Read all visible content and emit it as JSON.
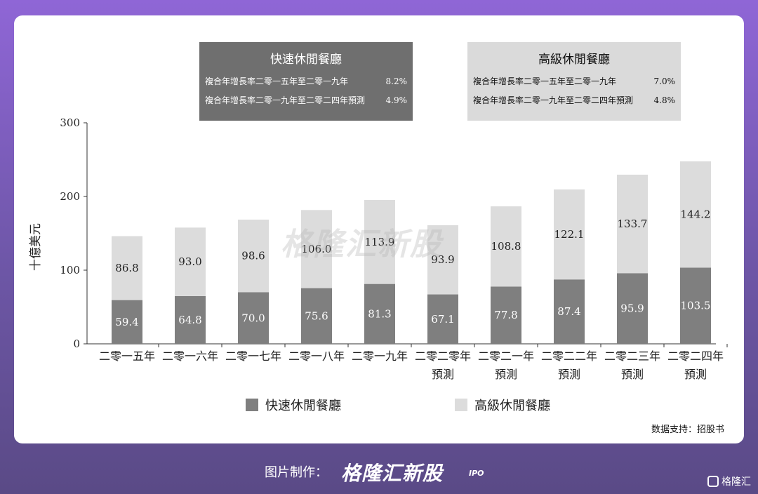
{
  "chart_data": {
    "type": "bar",
    "stacked": true,
    "ylabel": "十億美元",
    "ylim": [
      0,
      300
    ],
    "yticks": [
      0,
      100,
      200,
      300
    ],
    "categories": [
      [
        "二零一五年"
      ],
      [
        "二零一六年"
      ],
      [
        "二零一七年"
      ],
      [
        "二零一八年"
      ],
      [
        "二零一九年"
      ],
      [
        "二零二零年",
        "預測"
      ],
      [
        "二零二一年",
        "預測"
      ],
      [
        "二零二二年",
        "預測"
      ],
      [
        "二零二三年",
        "預測"
      ],
      [
        "二零二四年",
        "預測"
      ]
    ],
    "series": [
      {
        "name": "快速休閒餐廳",
        "color": "#7f7f7f",
        "values": [
          59.4,
          64.8,
          70.0,
          75.6,
          81.3,
          67.1,
          77.8,
          87.4,
          95.9,
          103.5
        ]
      },
      {
        "name": "高級休閒餐廳",
        "color": "#dcdcdc",
        "values": [
          86.8,
          93.0,
          98.6,
          106.0,
          113.9,
          93.9,
          108.8,
          122.1,
          133.7,
          144.2
        ]
      }
    ],
    "value_labels": [
      [
        "59.4",
        "64.8",
        "70.0",
        "75.6",
        "81.3",
        "67.1",
        "77.8",
        "87.4",
        "95.9",
        "103.5"
      ],
      [
        "86.8",
        "93.0",
        "98.6",
        "106.0",
        "113.9",
        "93.9",
        "108.8",
        "122.1",
        "133.7",
        "144.2"
      ]
    ],
    "legend_position": "bottom",
    "grid": false
  },
  "boxes": {
    "fast": {
      "title": "快速休閒餐廳",
      "rows": [
        {
          "label": "複合年增長率二零一五年至二零一九年",
          "value": "8.2%"
        },
        {
          "label": "複合年增長率二零一九年至二零二四年預測",
          "value": "4.9%"
        }
      ]
    },
    "premium": {
      "title": "高級休閒餐廳",
      "rows": [
        {
          "label": "複合年增長率二零一五年至二零一九年",
          "value": "7.0%"
        },
        {
          "label": "複合年增長率二零一九年至二零二四年預測",
          "value": "4.8%"
        }
      ]
    }
  },
  "watermark": "格隆汇新股",
  "source": "数据支持：招股书",
  "footer": {
    "credit": "图片制作：",
    "brand": "格隆汇新股",
    "brand_suffix": "IPO",
    "corner_logo": "格隆汇"
  }
}
